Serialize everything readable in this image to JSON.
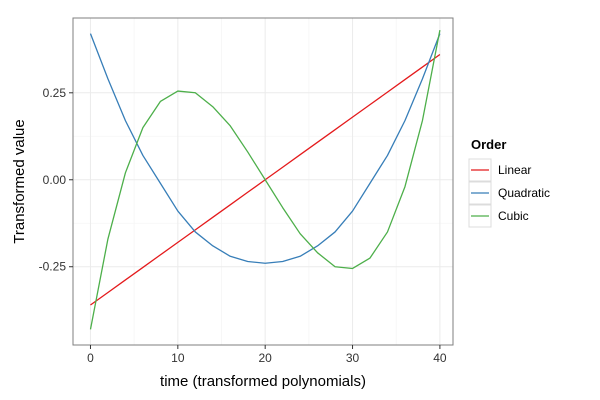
{
  "chart_data": {
    "type": "line",
    "xlabel": "time (transformed polynomials)",
    "ylabel": "Transformed value",
    "xlim": [
      -2,
      41.5
    ],
    "ylim": [
      -0.475,
      0.465
    ],
    "x_ticks": [
      0,
      10,
      20,
      30,
      40
    ],
    "x_tick_labels": [
      "0",
      "10",
      "20",
      "30",
      "40"
    ],
    "y_ticks": [
      -0.25,
      0,
      0.25
    ],
    "y_tick_labels": [
      "-0.25",
      "0.00",
      "0.25"
    ],
    "grid": true,
    "legend": {
      "title": "Order",
      "placement": "right"
    },
    "x": [
      0,
      2,
      4,
      6,
      8,
      10,
      12,
      14,
      16,
      18,
      20,
      22,
      24,
      26,
      28,
      30,
      32,
      34,
      36,
      38,
      40
    ],
    "series": [
      {
        "name": "Linear",
        "color": "#e41a1c",
        "values": [
          -0.36,
          -0.324,
          -0.288,
          -0.252,
          -0.216,
          -0.18,
          -0.144,
          -0.108,
          -0.072,
          -0.036,
          0.0,
          0.036,
          0.072,
          0.108,
          0.144,
          0.18,
          0.216,
          0.252,
          0.288,
          0.324,
          0.36
        ]
      },
      {
        "name": "Quadratic",
        "color": "#377eb8",
        "values": [
          0.42,
          0.29,
          0.17,
          0.07,
          -0.01,
          -0.09,
          -0.15,
          -0.19,
          -0.22,
          -0.235,
          -0.24,
          -0.235,
          -0.22,
          -0.19,
          -0.15,
          -0.09,
          -0.01,
          0.07,
          0.17,
          0.29,
          0.42
        ]
      },
      {
        "name": "Cubic",
        "color": "#4daf4a",
        "values": [
          -0.43,
          -0.17,
          0.02,
          0.15,
          0.225,
          0.255,
          0.25,
          0.21,
          0.155,
          0.08,
          0.0,
          -0.08,
          -0.155,
          -0.21,
          -0.25,
          -0.255,
          -0.225,
          -0.15,
          -0.02,
          0.17,
          0.43
        ]
      }
    ]
  }
}
